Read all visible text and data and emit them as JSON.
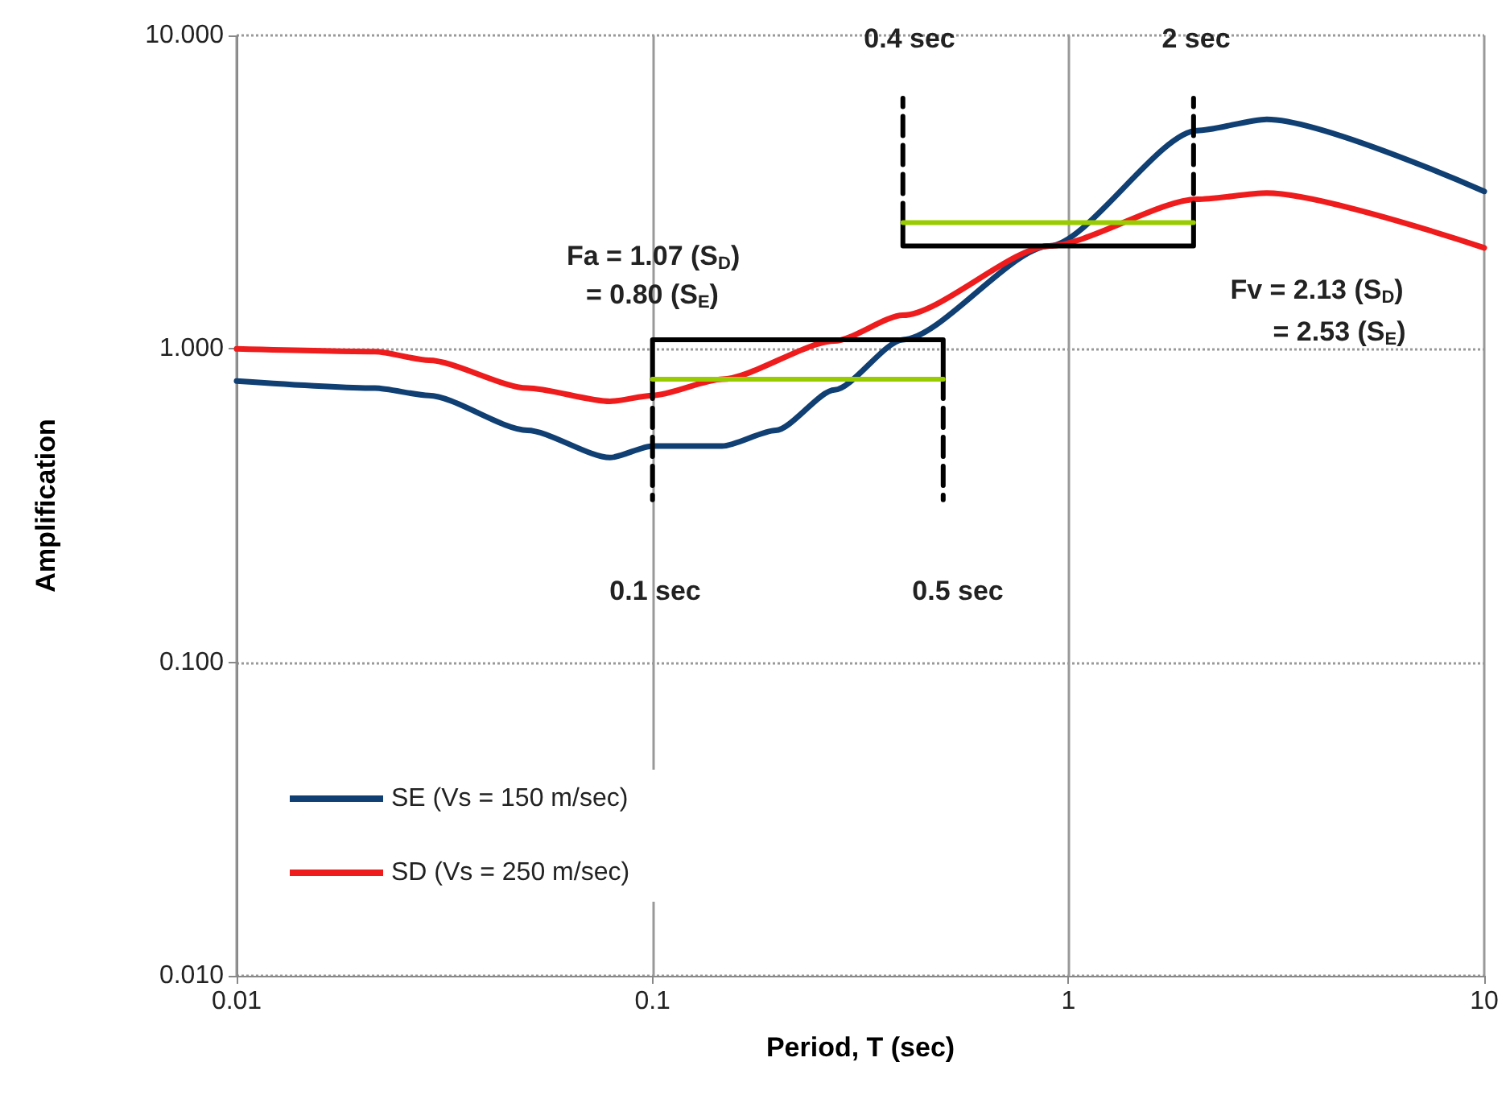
{
  "chart_data": {
    "type": "line",
    "xlabel": "Period, T (sec)",
    "ylabel": "Amplification",
    "log": "xy",
    "grid": true,
    "legend": "bottom left",
    "marker": "none",
    "line_style": "solid",
    "xlim": [
      0.01,
      10
    ],
    "xticks": [
      0.01,
      0.1,
      1,
      10
    ],
    "ylim": [
      0.01,
      10
    ],
    "yticks": [
      {
        "value": 0.01,
        "label": "0.010"
      },
      {
        "value": 0.1,
        "label": "0.100"
      },
      {
        "value": 1,
        "label": "1.000"
      },
      {
        "value": 10,
        "label": "10.000"
      }
    ],
    "series": [
      {
        "name": "SE (Vs = 150 m/sec)",
        "color": "#103f73",
        "x": [
          0.01,
          0.0215,
          0.029,
          0.05,
          0.079,
          0.1,
          0.147,
          0.198,
          0.274,
          0.4,
          0.9,
          2.04,
          3.0,
          10
        ],
        "values": [
          0.79,
          0.75,
          0.71,
          0.55,
          0.45,
          0.49,
          0.49,
          0.55,
          0.74,
          1.07,
          2.13,
          4.97,
          5.4,
          3.18
        ]
      },
      {
        "name": "SD (Vs = 250 m/sec)",
        "color": "#ee1c1c",
        "x": [
          0.01,
          0.0215,
          0.029,
          0.05,
          0.079,
          0.1,
          0.147,
          0.274,
          0.4,
          0.9,
          2.04,
          3.0,
          10
        ],
        "values": [
          1.0,
          0.98,
          0.92,
          0.75,
          0.68,
          0.71,
          0.8,
          1.06,
          1.28,
          2.13,
          3.0,
          3.14,
          2.1
        ]
      },
      {
        "color": "#000000",
        "x": [
          0.1,
          0.1,
          0.5,
          0.5
        ],
        "values": [
          0.8,
          1.07,
          1.07,
          0.8
        ]
      },
      {
        "color": "#000000",
        "line_style": "dashed",
        "x": [
          0.1,
          0.1
        ],
        "values": [
          0.8,
          0.33
        ]
      },
      {
        "color": "#000000",
        "line_style": "dashed",
        "x": [
          0.5,
          0.5
        ],
        "values": [
          0.8,
          0.33
        ]
      },
      {
        "color": "#99cc00",
        "x": [
          0.1,
          0.5
        ],
        "values": [
          0.8,
          0.8
        ]
      },
      {
        "color": "#000000",
        "x": [
          0.4,
          0.4,
          2,
          2
        ],
        "values": [
          2.53,
          2.13,
          2.13,
          2.53
        ]
      },
      {
        "color": "#000000",
        "line_style": "dashed",
        "x": [
          0.4,
          0.4
        ],
        "values": [
          2.53,
          6.3
        ]
      },
      {
        "color": "#000000",
        "line_style": "dashed",
        "x": [
          2,
          2
        ],
        "values": [
          2.53,
          6.3
        ]
      },
      {
        "color": "#99cc00",
        "x": [
          0.4,
          2
        ],
        "values": [
          2.53,
          2.53
        ]
      }
    ],
    "annotations": [
      "Fa = 1.07 (S$_{D}$)",
      "= 0.80 (S$_{E}$)",
      "Fv = 2.13 (S$_{D}$)",
      "= 2.53 (S$_{E}$)",
      "0.1 sec",
      "0.5 sec",
      "0.4 sec",
      "2 sec"
    ]
  }
}
